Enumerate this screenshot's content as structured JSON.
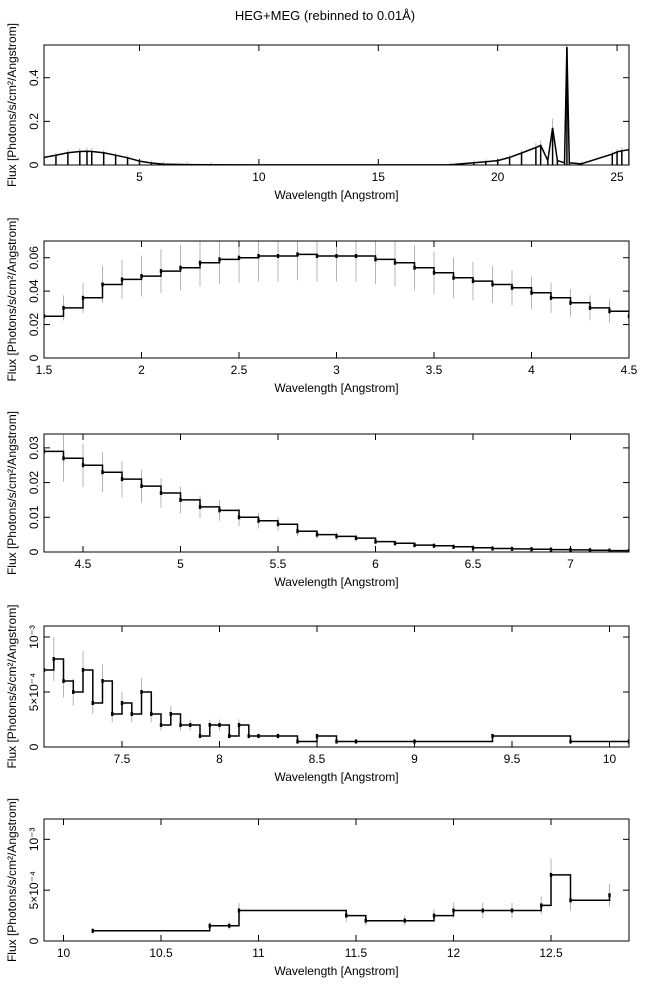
{
  "page_title": "HEG+MEG (rebinned to 0.01Å)",
  "colors": {
    "data": "#000000",
    "error": "#b4b4b4",
    "axes": "#000000"
  },
  "chart_data": [
    {
      "type": "line",
      "xlabel": "Wavelength [Angstrom]",
      "ylabel": "Flux [Photons/s/cm²/Angstrom]",
      "xlim": [
        1,
        25.5
      ],
      "ylim": [
        0,
        0.55
      ],
      "xticks": [
        5,
        10,
        15,
        20,
        25
      ],
      "xtick_labels": [
        "5",
        "10",
        "15",
        "20",
        "25"
      ],
      "yticks": [
        0,
        0.2,
        0.4
      ],
      "ytick_labels": [
        "0",
        "0.2",
        "0.4"
      ],
      "series": [
        {
          "x": [
            1.0,
            1.5,
            2.0,
            2.5,
            2.8,
            3.0,
            3.5,
            4.0,
            4.5,
            5.0,
            5.5,
            6.0,
            7.0,
            8.0,
            10.0,
            15.0,
            18.0,
            19.0,
            19.5,
            20.0,
            20.5,
            21.0,
            21.6,
            21.8,
            22.1,
            22.3,
            22.5,
            22.8,
            22.9,
            23.0,
            23.5,
            24.8,
            25.0,
            25.2,
            25.5
          ],
          "y": [
            0.035,
            0.045,
            0.056,
            0.062,
            0.063,
            0.062,
            0.056,
            0.045,
            0.033,
            0.018,
            0.009,
            0.004,
            0.002,
            0.001,
            0.0005,
            0.0003,
            0.001,
            0.01,
            0.015,
            0.02,
            0.035,
            0.055,
            0.08,
            0.09,
            0.02,
            0.17,
            0.02,
            0.01,
            0.54,
            0.01,
            0.005,
            0.05,
            0.06,
            0.065,
            0.07
          ]
        }
      ]
    },
    {
      "type": "line",
      "xlabel": "Wavelength [Angstrom]",
      "ylabel": "Flux [Photons/s/cm²/Angstrom]",
      "xlim": [
        1.5,
        4.5
      ],
      "ylim": [
        0,
        0.07
      ],
      "xticks": [
        1.5,
        2,
        2.5,
        3,
        3.5,
        4,
        4.5
      ],
      "xtick_labels": [
        "1.5",
        "2",
        "2.5",
        "3",
        "3.5",
        "4",
        "4.5"
      ],
      "yticks": [
        0,
        0.02,
        0.04,
        0.06
      ],
      "ytick_labels": [
        "0",
        "0.02",
        "0.04",
        "0.06"
      ],
      "series": [
        {
          "x": [
            1.5,
            1.6,
            1.7,
            1.8,
            1.9,
            2.0,
            2.1,
            2.2,
            2.3,
            2.4,
            2.5,
            2.6,
            2.7,
            2.8,
            2.9,
            3.0,
            3.1,
            3.2,
            3.3,
            3.4,
            3.5,
            3.6,
            3.7,
            3.8,
            3.9,
            4.0,
            4.1,
            4.2,
            4.3,
            4.4,
            4.5
          ],
          "y": [
            0.025,
            0.03,
            0.036,
            0.044,
            0.047,
            0.049,
            0.052,
            0.054,
            0.057,
            0.059,
            0.06,
            0.061,
            0.061,
            0.062,
            0.061,
            0.061,
            0.061,
            0.059,
            0.057,
            0.054,
            0.051,
            0.048,
            0.046,
            0.044,
            0.042,
            0.039,
            0.036,
            0.033,
            0.03,
            0.028,
            0.025
          ]
        }
      ]
    },
    {
      "type": "line",
      "xlabel": "Wavelength [Angstrom]",
      "ylabel": "Flux [Photons/s/cm²/Angstrom]",
      "xlim": [
        4.3,
        7.3
      ],
      "ylim": [
        0,
        0.034
      ],
      "xticks": [
        4.5,
        5,
        5.5,
        6,
        6.5,
        7
      ],
      "xtick_labels": [
        "4.5",
        "5",
        "5.5",
        "6",
        "6.5",
        "7"
      ],
      "yticks": [
        0,
        0.01,
        0.02,
        0.03
      ],
      "ytick_labels": [
        "0",
        "0.01",
        "0.02",
        "0.03"
      ],
      "series": [
        {
          "x": [
            4.3,
            4.4,
            4.5,
            4.6,
            4.7,
            4.8,
            4.9,
            5.0,
            5.1,
            5.2,
            5.3,
            5.4,
            5.5,
            5.6,
            5.7,
            5.8,
            5.9,
            6.0,
            6.1,
            6.2,
            6.3,
            6.4,
            6.5,
            6.6,
            6.7,
            6.8,
            6.9,
            7.0,
            7.1,
            7.2,
            7.3
          ],
          "y": [
            0.029,
            0.027,
            0.025,
            0.023,
            0.021,
            0.019,
            0.017,
            0.015,
            0.013,
            0.012,
            0.01,
            0.009,
            0.008,
            0.006,
            0.005,
            0.0045,
            0.004,
            0.003,
            0.0025,
            0.002,
            0.0018,
            0.0015,
            0.0012,
            0.001,
            0.0009,
            0.0008,
            0.0007,
            0.0006,
            0.0005,
            0.0004,
            0.0003
          ]
        }
      ]
    },
    {
      "type": "line",
      "xlabel": "Wavelength [Angstrom]",
      "ylabel": "Flux [Photons/s/cm²/Angstrom]",
      "xlim": [
        7.1,
        10.1
      ],
      "ylim": [
        0,
        0.0011
      ],
      "xticks": [
        7.5,
        8,
        8.5,
        9,
        9.5,
        10
      ],
      "xtick_labels": [
        "7.5",
        "8",
        "8.5",
        "9",
        "9.5",
        "10"
      ],
      "yticks": [
        0,
        0.0005,
        0.001
      ],
      "ytick_labels": [
        "0",
        "5×10⁻⁴",
        "10⁻³"
      ],
      "series": [
        {
          "x": [
            7.1,
            7.15,
            7.2,
            7.25,
            7.3,
            7.35,
            7.4,
            7.45,
            7.5,
            7.55,
            7.6,
            7.65,
            7.7,
            7.75,
            7.8,
            7.85,
            7.9,
            7.95,
            8.0,
            8.05,
            8.1,
            8.15,
            8.2,
            8.3,
            8.4,
            8.5,
            8.6,
            8.7,
            9.0,
            9.4,
            9.8,
            10.1
          ],
          "y": [
            0.0007,
            0.0008,
            0.0006,
            0.0005,
            0.0007,
            0.0004,
            0.0006,
            0.0003,
            0.0004,
            0.0003,
            0.0005,
            0.0003,
            0.0002,
            0.0003,
            0.0002,
            0.0002,
            0.0001,
            0.0002,
            0.0002,
            0.0001,
            0.0002,
            0.0001,
            0.0001,
            0.0001,
            5e-05,
            0.0001,
            5e-05,
            5e-05,
            5e-05,
            0.0001,
            5e-05,
            5e-05
          ]
        }
      ]
    },
    {
      "type": "line",
      "xlabel": "Wavelength [Angstrom]",
      "ylabel": "Flux [Photons/s/cm²/Angstrom]",
      "xlim": [
        9.9,
        12.9
      ],
      "ylim": [
        0,
        0.0012
      ],
      "xticks": [
        10,
        10.5,
        11,
        11.5,
        12,
        12.5
      ],
      "xtick_labels": [
        "10",
        "10.5",
        "11",
        "11.5",
        "12",
        "12.5"
      ],
      "yticks": [
        0,
        0.0005,
        0.001
      ],
      "ytick_labels": [
        "0",
        "5×10⁻⁴",
        "10⁻³"
      ],
      "series": [
        {
          "x": [
            10.15,
            10.75,
            10.85,
            10.9,
            11.45,
            11.55,
            11.75,
            11.9,
            12.0,
            12.15,
            12.3,
            12.45,
            12.5,
            12.6,
            12.8
          ],
          "y": [
            0.0001,
            0.00015,
            0.00015,
            0.0003,
            0.00025,
            0.0002,
            0.0002,
            0.00025,
            0.0003,
            0.0003,
            0.0003,
            0.00035,
            0.00065,
            0.0004,
            0.00045
          ]
        }
      ]
    }
  ]
}
